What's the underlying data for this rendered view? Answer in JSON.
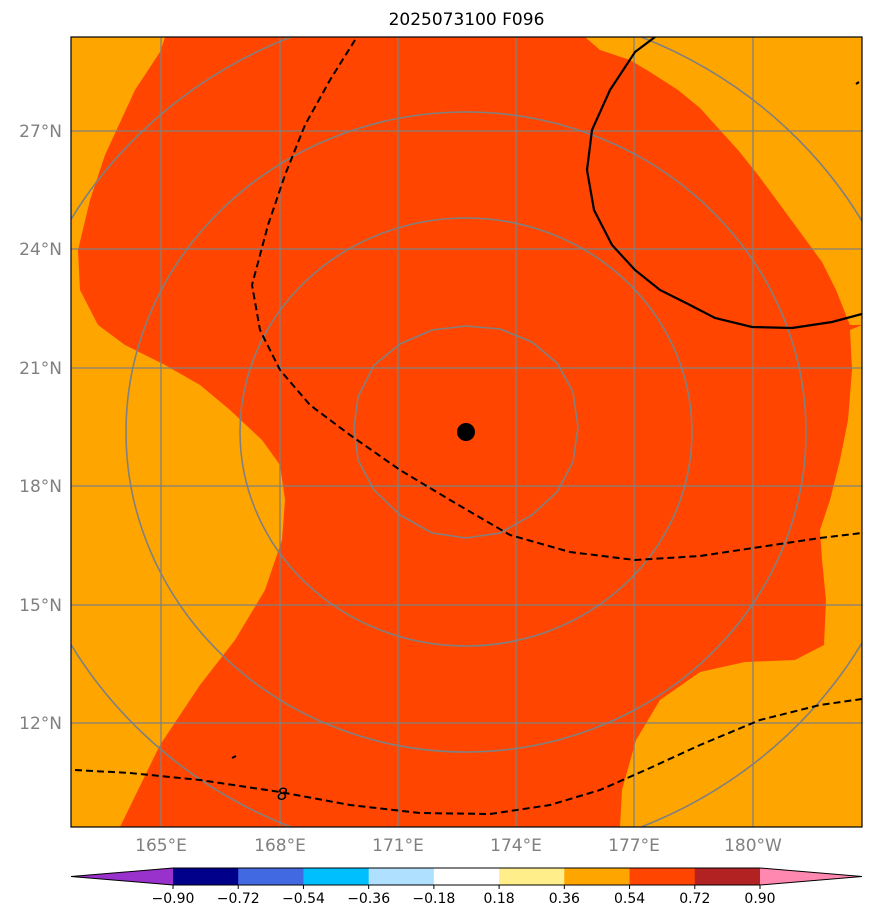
{
  "title": "2025073100 F096",
  "map": {
    "lat_ticks": [
      {
        "label": "27°N"
      },
      {
        "label": "24°N"
      },
      {
        "label": "21°N"
      },
      {
        "label": "18°N"
      },
      {
        "label": "15°N"
      },
      {
        "label": "12°N"
      }
    ],
    "lon_ticks": [
      {
        "label": "165°E"
      },
      {
        "label": "168°E"
      },
      {
        "label": "171°E"
      },
      {
        "label": "174°E"
      },
      {
        "label": "177°E"
      },
      {
        "label": "180°W"
      }
    ],
    "contour_label": "8",
    "colors": {
      "field_0_54_0_72": "#ff4500",
      "field_0_36_0_54": "#ffa500",
      "gridline": "#808080",
      "range_rings": "#808080",
      "contour": "#000000",
      "center_marker": "#000000"
    }
  },
  "colorbar": {
    "labels": [
      "−0.90",
      "−0.72",
      "−0.54",
      "−0.36",
      "−0.18",
      "0.18",
      "0.36",
      "0.54",
      "0.72",
      "0.90"
    ],
    "colors": [
      "#9932cc",
      "#00008b",
      "#4169e1",
      "#00bfff",
      "#b0e0ff",
      "#ffffff",
      "#ffee8a",
      "#ffa500",
      "#ff4500",
      "#b22222",
      "#ff88b0"
    ]
  }
}
